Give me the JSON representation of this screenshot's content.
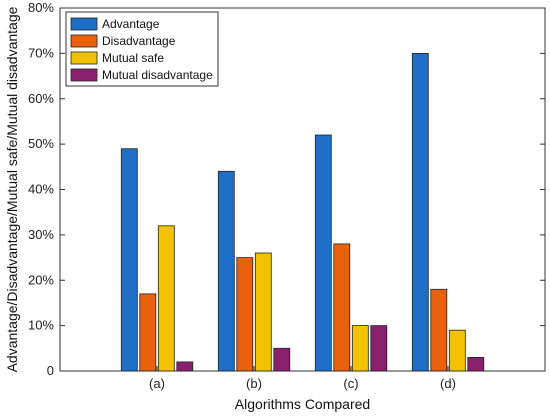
{
  "chart_data": {
    "type": "bar",
    "xlabel": "Algorithms Compared",
    "ylabel": "Advantage/Disadvantage/Mutual safe/Mutual disadvantage",
    "categories": [
      "(a)",
      "(b)",
      "(c)",
      "(d)"
    ],
    "ylim": [
      0,
      80
    ],
    "yticks": [
      "0",
      "10%",
      "20%",
      "30%",
      "40%",
      "50%",
      "60%",
      "70%",
      "80%"
    ],
    "grid": false,
    "legend_position": "top-left",
    "series": [
      {
        "name": "Advantage",
        "color": "#1f6fc9",
        "values": [
          49,
          44,
          52,
          70
        ]
      },
      {
        "name": "Disadvantage",
        "color": "#e8620e",
        "values": [
          17,
          25,
          28,
          18
        ]
      },
      {
        "name": "Mutual safe",
        "color": "#f2c200",
        "values": [
          32,
          26,
          10,
          9
        ]
      },
      {
        "name": "Mutual disadvantage",
        "color": "#8a1f6e",
        "values": [
          2,
          5,
          10,
          3
        ]
      }
    ]
  }
}
